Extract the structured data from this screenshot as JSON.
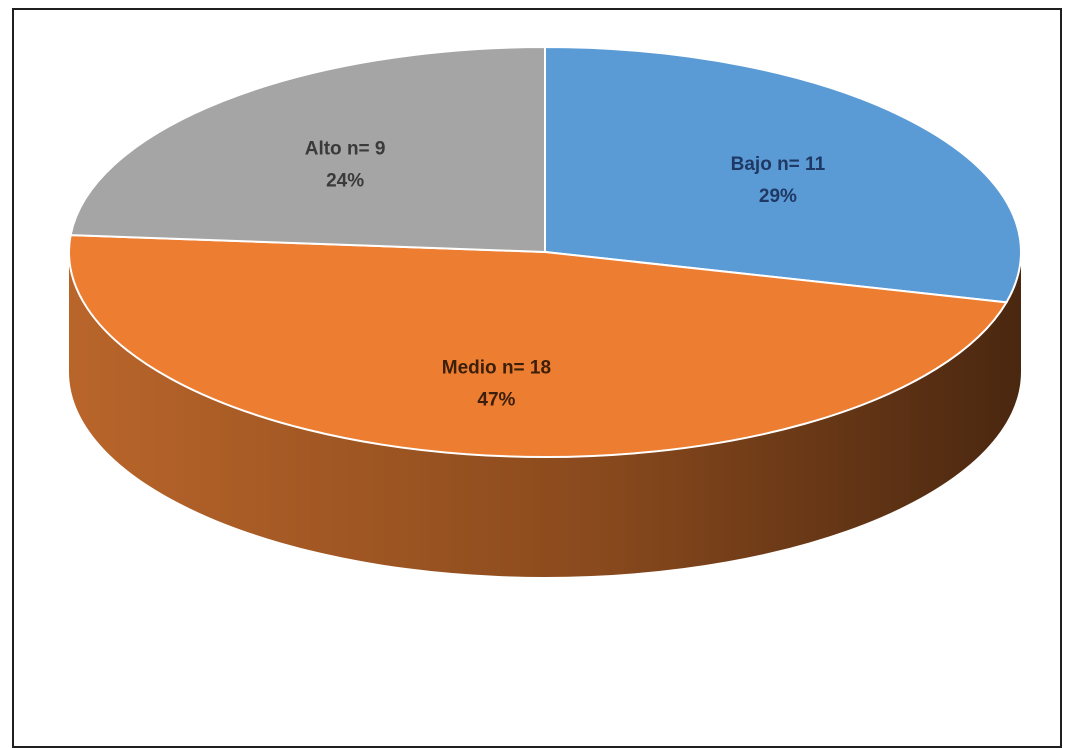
{
  "chart_data": {
    "type": "pie",
    "title": "",
    "three_d": true,
    "slices": [
      {
        "label": "Bajo n= 11",
        "value": 11,
        "percent_label": "29%",
        "color": "#5b9bd5",
        "label_color": "#1f3864"
      },
      {
        "label": "Medio n= 18",
        "value": 18,
        "percent_label": "47%",
        "color": "#ed7d31",
        "label_color": "#3b1f08"
      },
      {
        "label": "Alto n= 9",
        "value": 9,
        "percent_label": "24%",
        "color": "#a5a5a5",
        "label_color": "#3a3a3a"
      }
    ]
  }
}
